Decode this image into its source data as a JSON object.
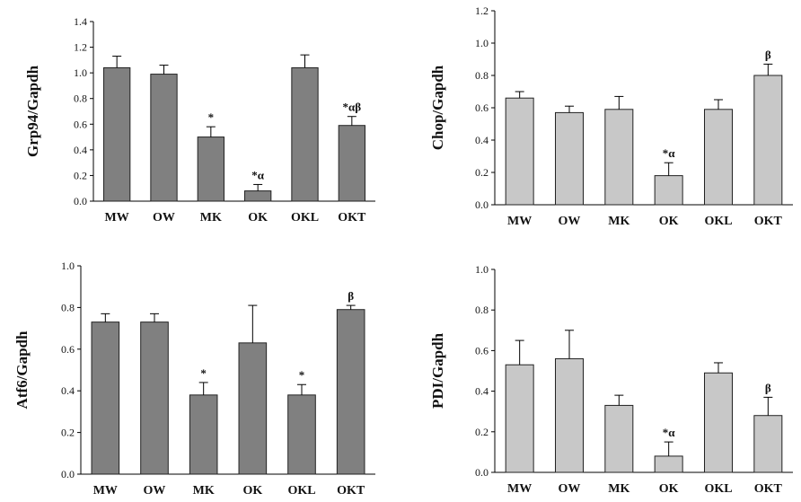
{
  "chart_data": [
    {
      "type": "bar",
      "panel": "top-left",
      "ylabel": "Grp94/Gapdh",
      "categories": [
        "MW",
        "OW",
        "MK",
        "OK",
        "OKL",
        "OKT"
      ],
      "values": [
        1.04,
        0.99,
        0.5,
        0.08,
        1.04,
        0.59
      ],
      "errors": [
        0.09,
        0.07,
        0.08,
        0.05,
        0.1,
        0.07
      ],
      "annotations": [
        "",
        "",
        "*",
        "*α",
        "",
        "*αβ"
      ],
      "ylim": [
        0,
        1.4
      ],
      "yticks": [
        "0.0",
        "0.2",
        "0.4",
        "0.6",
        "0.8",
        "1.0",
        "1.2",
        "1.4"
      ],
      "bar_color": "#808080"
    },
    {
      "type": "bar",
      "panel": "top-right",
      "ylabel": "Chop/Gapdh",
      "categories": [
        "MW",
        "OW",
        "MK",
        "OK",
        "OKL",
        "OKT"
      ],
      "values": [
        0.66,
        0.57,
        0.59,
        0.18,
        0.59,
        0.8
      ],
      "errors": [
        0.04,
        0.04,
        0.08,
        0.08,
        0.06,
        0.07
      ],
      "annotations": [
        "",
        "",
        "",
        "*α",
        "",
        "β"
      ],
      "ylim": [
        0,
        1.2
      ],
      "yticks": [
        "0.0",
        "0.2",
        "0.4",
        "0.6",
        "0.8",
        "1.0",
        "1.2"
      ],
      "bar_color": "#c8c8c8"
    },
    {
      "type": "bar",
      "panel": "bottom-left",
      "ylabel": "Atf6/Gapdh",
      "categories": [
        "MW",
        "OW",
        "MK",
        "OK",
        "OKL",
        "OKT"
      ],
      "values": [
        0.73,
        0.73,
        0.38,
        0.63,
        0.38,
        0.79
      ],
      "errors": [
        0.04,
        0.04,
        0.06,
        0.18,
        0.05,
        0.02
      ],
      "annotations": [
        "",
        "",
        "*",
        "",
        "*",
        "β"
      ],
      "ylim": [
        0,
        1.0
      ],
      "yticks": [
        "0.0",
        "0.2",
        "0.4",
        "0.6",
        "0.8",
        "1.0"
      ],
      "bar_color": "#808080"
    },
    {
      "type": "bar",
      "panel": "bottom-right",
      "ylabel": "PDI/Gapdh",
      "categories": [
        "MW",
        "OW",
        "MK",
        "OK",
        "OKL",
        "OKT"
      ],
      "values": [
        0.53,
        0.56,
        0.33,
        0.08,
        0.49,
        0.28
      ],
      "errors": [
        0.12,
        0.14,
        0.05,
        0.07,
        0.05,
        0.09
      ],
      "annotations": [
        "",
        "",
        "",
        "*α",
        "",
        "β"
      ],
      "ylim": [
        0,
        1.0
      ],
      "yticks": [
        "0.0",
        "0.2",
        "0.4",
        "0.6",
        "0.8",
        "1.0"
      ],
      "bar_color": "#c8c8c8"
    }
  ]
}
